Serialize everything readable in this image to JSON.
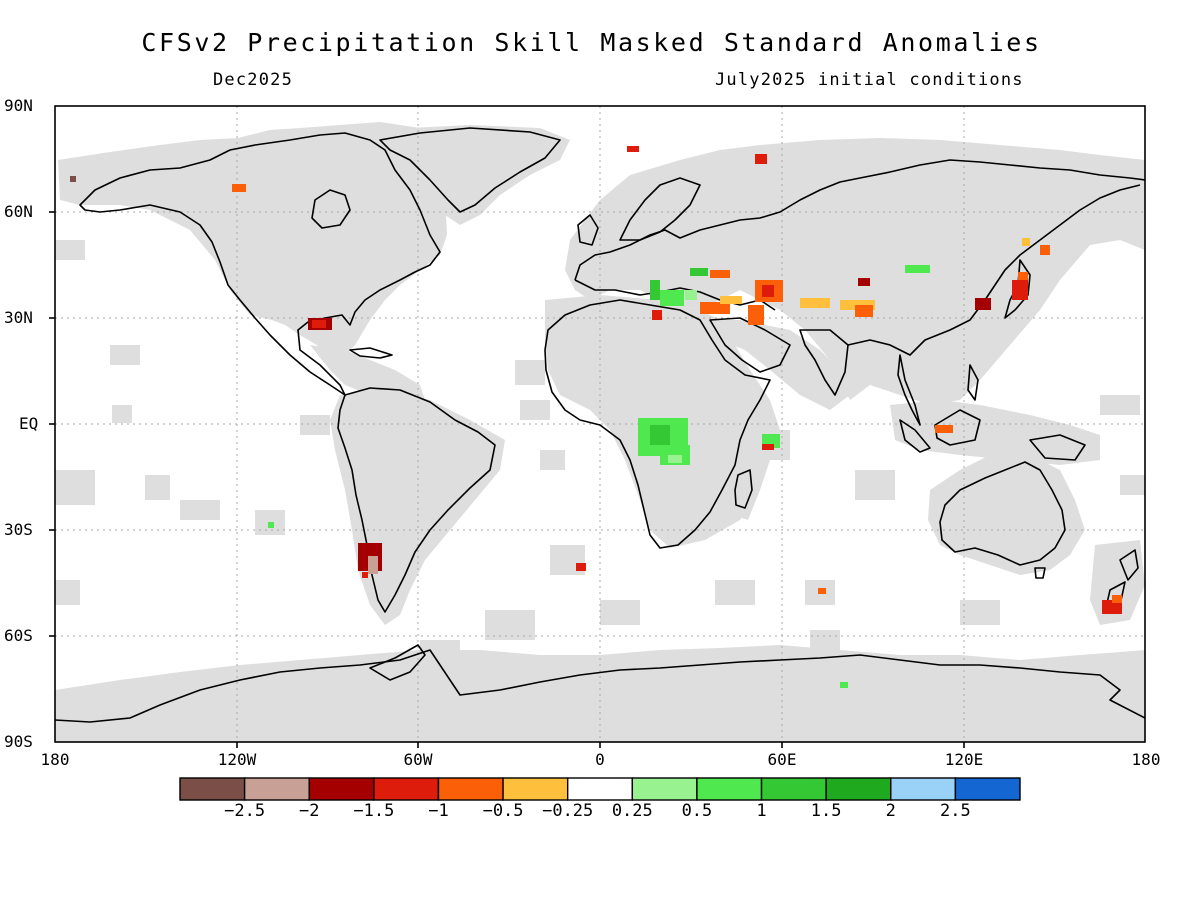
{
  "header": {
    "title": "CFSv2 Precipitation Skill Masked Standard Anomalies",
    "valid_month": "Dec2025",
    "init": "July2025 initial conditions"
  },
  "lat_labels": [
    "90N",
    "60N",
    "30N",
    "EQ",
    "30S",
    "60S",
    "90S"
  ],
  "lon_labels": [
    "180",
    "120W",
    "60W",
    "0",
    "60E",
    "120E",
    "180"
  ],
  "colorbar": {
    "colors": [
      "#7b4f47",
      "#c9a095",
      "#a50000",
      "#dd1c0c",
      "#fb6008",
      "#fec03c",
      "#ffffff",
      "#98f28f",
      "#4fe94f",
      "#34c934",
      "#1fa91f",
      "#99d1f7",
      "#1466d2"
    ],
    "labels": [
      "−2.5",
      "−2",
      "−1.5",
      "−1",
      "−0.5",
      "−0.25",
      "0.25",
      "0.5",
      "1",
      "1.5",
      "2",
      "2.5"
    ]
  },
  "map_colors": {
    "mask": "#dedede",
    "land_outline": "#000000",
    "grid": "#a8a8a8"
  }
}
